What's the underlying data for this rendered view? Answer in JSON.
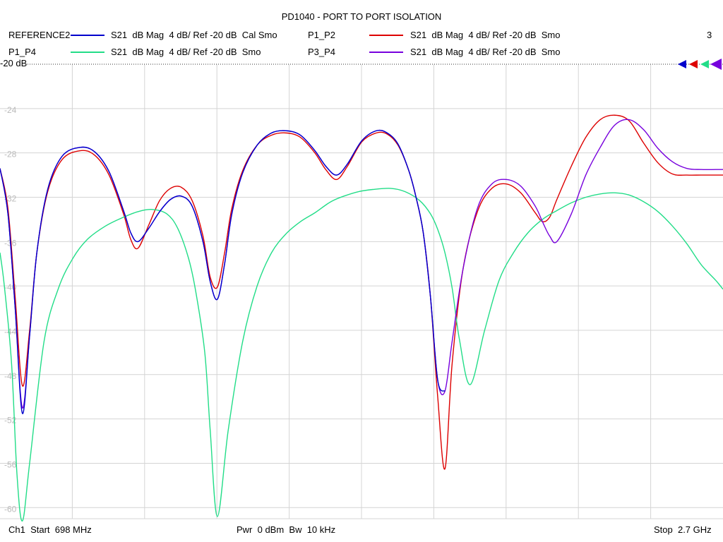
{
  "title": "PD1040 - PORT TO PORT ISOLATION",
  "legend": [
    {
      "name": "REFERENCE2",
      "color": "#0000cc",
      "desc": "S21  dB Mag  4 dB/ Ref -20 dB  Cal Smo"
    },
    {
      "name": "P1_P2",
      "color": "#dd0000",
      "desc": "S21  dB Mag  4 dB/ Ref -20 dB  Smo"
    },
    {
      "name": "P1_P4",
      "color": "#22dd88",
      "desc": "S21  dB Mag  4 dB/ Ref -20 dB  Smo"
    },
    {
      "name": "P3_P4",
      "color": "#7700dd",
      "desc": "S21  dB Mag  4 dB/ Ref -20 dB  Smo"
    }
  ],
  "marker_count": "3",
  "ref_label": "-20 dB",
  "footer": {
    "start": "Ch1  Start  698 MHz",
    "mid": "Pwr  0 dBm  Bw  10 kHz",
    "stop": "Stop  2.7 GHz"
  },
  "chart_data": {
    "type": "line",
    "xlim": [
      698,
      2700
    ],
    "x_unit": "MHz",
    "ylim": [
      -61,
      -20
    ],
    "yticks": [
      "-20",
      "-24",
      "-28",
      "-32",
      "-36",
      "-40",
      "-44",
      "-48",
      "-52",
      "-56",
      "-60"
    ],
    "grid": true,
    "series": [
      {
        "name": "P1_P2",
        "color": "#dd0000",
        "x": [
          698,
          720,
          740,
          760,
          780,
          800,
          830,
          870,
          920,
          960,
          1000,
          1040,
          1060,
          1080,
          1110,
          1140,
          1170,
          1200,
          1230,
          1260,
          1280,
          1300,
          1320,
          1340,
          1370,
          1410,
          1450,
          1490,
          1530,
          1570,
          1600,
          1630,
          1660,
          1700,
          1740,
          1770,
          1800,
          1830,
          1850,
          1870,
          1890,
          1910,
          1930,
          1950,
          1980,
          2020,
          2060,
          2100,
          2140,
          2180,
          2200,
          2220,
          2240,
          2280,
          2320,
          2360,
          2400,
          2440,
          2480,
          2520,
          2560,
          2600,
          2640,
          2680,
          2700
        ],
        "y": [
          -29.4,
          -33,
          -41,
          -49,
          -44,
          -37,
          -31.5,
          -28.6,
          -27.8,
          -28.2,
          -30,
          -33.5,
          -35.8,
          -36.6,
          -34.5,
          -32.3,
          -31.2,
          -31.1,
          -32.3,
          -35.5,
          -39.2,
          -40.1,
          -37,
          -33,
          -29.6,
          -27.3,
          -26.4,
          -26.2,
          -26.6,
          -28,
          -29.5,
          -30.4,
          -29.2,
          -27,
          -26.2,
          -26.3,
          -27.3,
          -29.6,
          -32,
          -35.2,
          -41,
          -50,
          -56.5,
          -47,
          -38.5,
          -33.3,
          -31.2,
          -30.8,
          -31.6,
          -33.4,
          -34.2,
          -33.8,
          -32.2,
          -29.2,
          -26.6,
          -25,
          -24.6,
          -25.1,
          -27.1,
          -28.9,
          -29.9,
          -30,
          -30,
          -30,
          -30
        ]
      },
      {
        "name": "P1_P4",
        "color": "#22dd88",
        "x": [
          698,
          710,
          730,
          745,
          760,
          780,
          820,
          860,
          900,
          940,
          990,
          1040,
          1080,
          1120,
          1160,
          1190,
          1220,
          1240,
          1265,
          1280,
          1300,
          1330,
          1370,
          1410,
          1450,
          1490,
          1530,
          1570,
          1600,
          1620,
          1650,
          1690,
          1730,
          1780,
          1820,
          1860,
          1890,
          1910,
          1930,
          1950,
          1970,
          2000,
          2040,
          2080,
          2120,
          2160,
          2200,
          2240,
          2280,
          2320,
          2360,
          2400,
          2440,
          2480,
          2520,
          2560,
          2600,
          2640,
          2680,
          2700
        ],
        "y": [
          -37,
          -40,
          -47,
          -57,
          -61.2,
          -56,
          -45,
          -40.2,
          -37.5,
          -35.8,
          -34.6,
          -33.8,
          -33.3,
          -33.1,
          -33.5,
          -34.8,
          -37.5,
          -40.5,
          -46,
          -53,
          -60.8,
          -53,
          -45,
          -40,
          -37,
          -35.3,
          -34.2,
          -33.4,
          -32.7,
          -32.3,
          -31.9,
          -31.5,
          -31.3,
          -31.2,
          -31.5,
          -32.3,
          -33.5,
          -34.9,
          -37,
          -40.2,
          -44.8,
          -48.9,
          -44,
          -39.5,
          -37,
          -35.2,
          -34,
          -33.2,
          -32.5,
          -32,
          -31.7,
          -31.6,
          -31.8,
          -32.4,
          -33.3,
          -34.6,
          -36.2,
          -38.1,
          -39.5,
          -40.3
        ]
      },
      {
        "name": "P3_P4",
        "color": "#7700dd",
        "x": [
          698,
          720,
          740,
          760,
          780,
          800,
          830,
          870,
          920,
          960,
          1000,
          1040,
          1060,
          1080,
          1110,
          1140,
          1170,
          1200,
          1230,
          1260,
          1280,
          1300,
          1320,
          1340,
          1370,
          1410,
          1450,
          1490,
          1530,
          1570,
          1600,
          1630,
          1660,
          1700,
          1740,
          1770,
          1800,
          1830,
          1850,
          1870,
          1890,
          1910,
          1930,
          1950,
          1980,
          2020,
          2060,
          2100,
          2140,
          2180,
          2200,
          2220,
          2240,
          2280,
          2320,
          2360,
          2400,
          2440,
          2480,
          2520,
          2560,
          2600,
          2640,
          2680,
          2700
        ],
        "y": [
          -29.4,
          -33.5,
          -42,
          -51,
          -44.5,
          -37,
          -31.3,
          -28.3,
          -27.5,
          -27.9,
          -29.7,
          -33.2,
          -35.2,
          -36,
          -34.8,
          -33.3,
          -32.2,
          -31.9,
          -32.8,
          -36,
          -39.6,
          -41.2,
          -38,
          -33.5,
          -29.8,
          -27.3,
          -26.2,
          -26,
          -26.4,
          -27.8,
          -29.2,
          -30,
          -29,
          -26.9,
          -26,
          -26.2,
          -27.2,
          -29.6,
          -32,
          -35.2,
          -41,
          -48.5,
          -49.5,
          -45,
          -38.5,
          -33,
          -30.8,
          -30.4,
          -31,
          -32.8,
          -34.2,
          -35.5,
          -36,
          -33.5,
          -30,
          -27.5,
          -25.5,
          -25,
          -25.9,
          -27.6,
          -28.8,
          -29.4,
          -29.5,
          -29.5,
          -29.5
        ]
      },
      {
        "name": "REFERENCE2",
        "color": "#0000cc",
        "x": [
          698,
          720,
          740,
          760,
          780,
          800,
          830,
          870,
          920,
          960,
          1000,
          1040,
          1060,
          1080,
          1110,
          1140,
          1170,
          1200,
          1230,
          1260,
          1280,
          1300,
          1320,
          1340,
          1370,
          1410,
          1450,
          1490,
          1530,
          1570,
          1600,
          1630,
          1660,
          1700,
          1740,
          1770,
          1800,
          1830,
          1850,
          1870,
          1890,
          1910,
          1930
        ],
        "y": [
          -29.4,
          -33.5,
          -42,
          -51.5,
          -44.5,
          -37,
          -31.3,
          -28.3,
          -27.5,
          -27.9,
          -29.7,
          -33.2,
          -35.2,
          -36,
          -34.8,
          -33.3,
          -32.2,
          -31.9,
          -32.8,
          -36,
          -39.6,
          -41.2,
          -38,
          -33.5,
          -29.8,
          -27.3,
          -26.2,
          -26,
          -26.4,
          -27.8,
          -29.2,
          -30,
          -29,
          -26.9,
          -26,
          -26.2,
          -27.2,
          -29.6,
          -32,
          -35.2,
          -41,
          -48.5,
          -49.5
        ]
      }
    ]
  }
}
